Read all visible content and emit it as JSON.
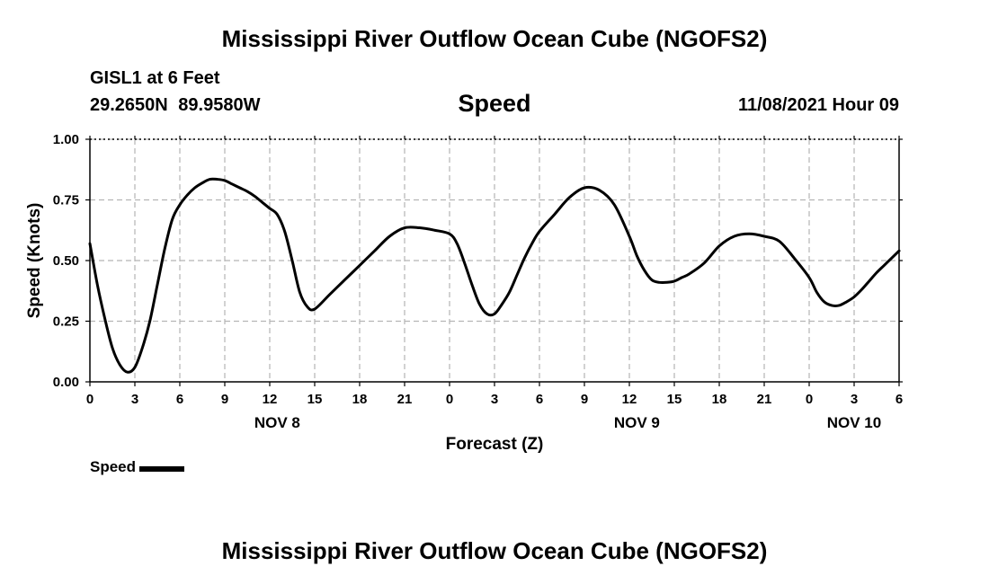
{
  "header": {
    "title": "Mississippi River Outflow Ocean Cube (NGOFS2)",
    "station": "GISL1 at 6 Feet",
    "coords": "29.2650N  89.9580W",
    "variable": "Speed",
    "datetime": "11/08/2021 Hour 09"
  },
  "footer": {
    "title": "Mississippi River Outflow Ocean Cube (NGOFS2)"
  },
  "legend": {
    "label": "Speed",
    "color": "#000000"
  },
  "chart_data": {
    "type": "line",
    "title": "Speed",
    "xlabel": "Forecast (Z)",
    "ylabel": "Speed (Knots)",
    "xlim": [
      0,
      54
    ],
    "ylim": [
      0,
      1.0
    ],
    "grid": true,
    "legend_position": "bottom-left",
    "x_ticks": [
      0,
      3,
      6,
      9,
      12,
      15,
      18,
      21,
      24,
      27,
      30,
      33,
      36,
      39,
      42,
      45,
      48,
      51,
      54
    ],
    "x_tick_labels": [
      "0",
      "3",
      "6",
      "9",
      "12",
      "15",
      "18",
      "21",
      "0",
      "3",
      "6",
      "9",
      "12",
      "15",
      "18",
      "21",
      "0",
      "3",
      "6"
    ],
    "y_ticks": [
      0,
      0.25,
      0.5,
      0.75,
      1.0
    ],
    "y_tick_labels": [
      "0.00",
      "0.25",
      "0.50",
      "0.75",
      "1.00"
    ],
    "date_labels": [
      {
        "x": 12.5,
        "label": "NOV 8"
      },
      {
        "x": 36.5,
        "label": "NOV 9"
      },
      {
        "x": 51,
        "label": "NOV 10"
      }
    ],
    "series": [
      {
        "name": "Speed",
        "color": "#000000",
        "x": [
          0,
          0.5,
          1,
          1.5,
          2,
          2.5,
          3,
          3.5,
          4,
          4.5,
          5,
          5.5,
          6,
          6.5,
          7,
          7.5,
          8,
          8.5,
          9,
          9.5,
          10,
          10.5,
          11,
          11.5,
          12,
          12.5,
          13,
          13.5,
          14,
          14.5,
          15,
          16,
          17,
          18,
          19,
          20,
          21,
          22,
          23,
          24,
          24.5,
          25,
          25.5,
          26,
          26.5,
          27,
          27.5,
          28,
          28.5,
          29,
          29.5,
          30,
          31,
          32,
          33,
          34,
          35,
          36,
          36.5,
          37,
          37.5,
          38,
          38.5,
          39,
          39.5,
          40,
          41,
          42,
          43,
          44,
          45,
          46,
          47,
          48,
          48.5,
          49,
          49.5,
          50,
          50.5,
          51,
          51.5,
          52,
          52.5,
          53,
          53.5,
          54
        ],
        "y": [
          0.57,
          0.4,
          0.26,
          0.14,
          0.07,
          0.04,
          0.06,
          0.14,
          0.25,
          0.4,
          0.55,
          0.67,
          0.73,
          0.77,
          0.8,
          0.82,
          0.835,
          0.835,
          0.83,
          0.815,
          0.8,
          0.785,
          0.765,
          0.74,
          0.715,
          0.69,
          0.62,
          0.5,
          0.37,
          0.31,
          0.3,
          0.36,
          0.42,
          0.48,
          0.54,
          0.6,
          0.635,
          0.635,
          0.625,
          0.61,
          0.57,
          0.49,
          0.4,
          0.32,
          0.28,
          0.28,
          0.32,
          0.37,
          0.44,
          0.51,
          0.57,
          0.62,
          0.69,
          0.76,
          0.8,
          0.79,
          0.73,
          0.6,
          0.52,
          0.46,
          0.42,
          0.41,
          0.41,
          0.415,
          0.43,
          0.445,
          0.49,
          0.56,
          0.6,
          0.61,
          0.6,
          0.58,
          0.51,
          0.43,
          0.37,
          0.33,
          0.315,
          0.315,
          0.33,
          0.35,
          0.38,
          0.415,
          0.45,
          0.48,
          0.51,
          0.54
        ]
      }
    ]
  }
}
